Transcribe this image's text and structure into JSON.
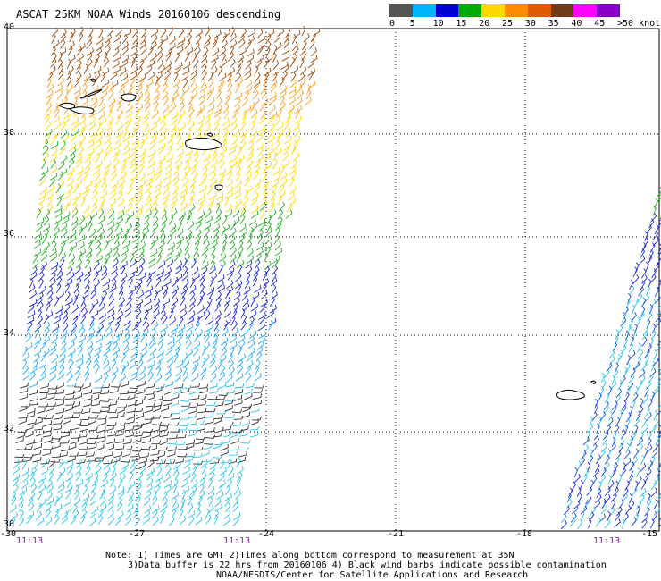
{
  "title": "ASCAT 25KM NOAA Winds 20160106 descending",
  "speed_scale": {
    "labels": [
      "0",
      "5",
      "10",
      "15",
      "20",
      "25",
      "30",
      "35",
      "40",
      "45",
      ">50 knots"
    ],
    "colors": [
      "#555555",
      "#00b4ff",
      "#0000d2",
      "#00aa00",
      "#ffd800",
      "#ff8c00",
      "#e05a00",
      "#6e3a1a",
      "#ff00ff",
      "#8b00c8"
    ]
  },
  "axes": {
    "lon_labels": [
      "-30",
      "-27",
      "-24",
      "-21",
      "-18",
      "-15"
    ],
    "lat_labels": [
      "40",
      "38",
      "36",
      "34",
      "32",
      "30"
    ]
  },
  "pass_times": [
    "11:13",
    "11:13",
    "11:13"
  ],
  "notes": {
    "line1": "Note: 1) Times are GMT 2)Times along bottom correspond to measurement at 35N",
    "line2": "3)Data buffer is 22 hrs from 20160106 4) Black wind barbs indicate possible contamination",
    "line3": "NOAA/NESDIS/Center for Satellite Applications and Research"
  }
}
